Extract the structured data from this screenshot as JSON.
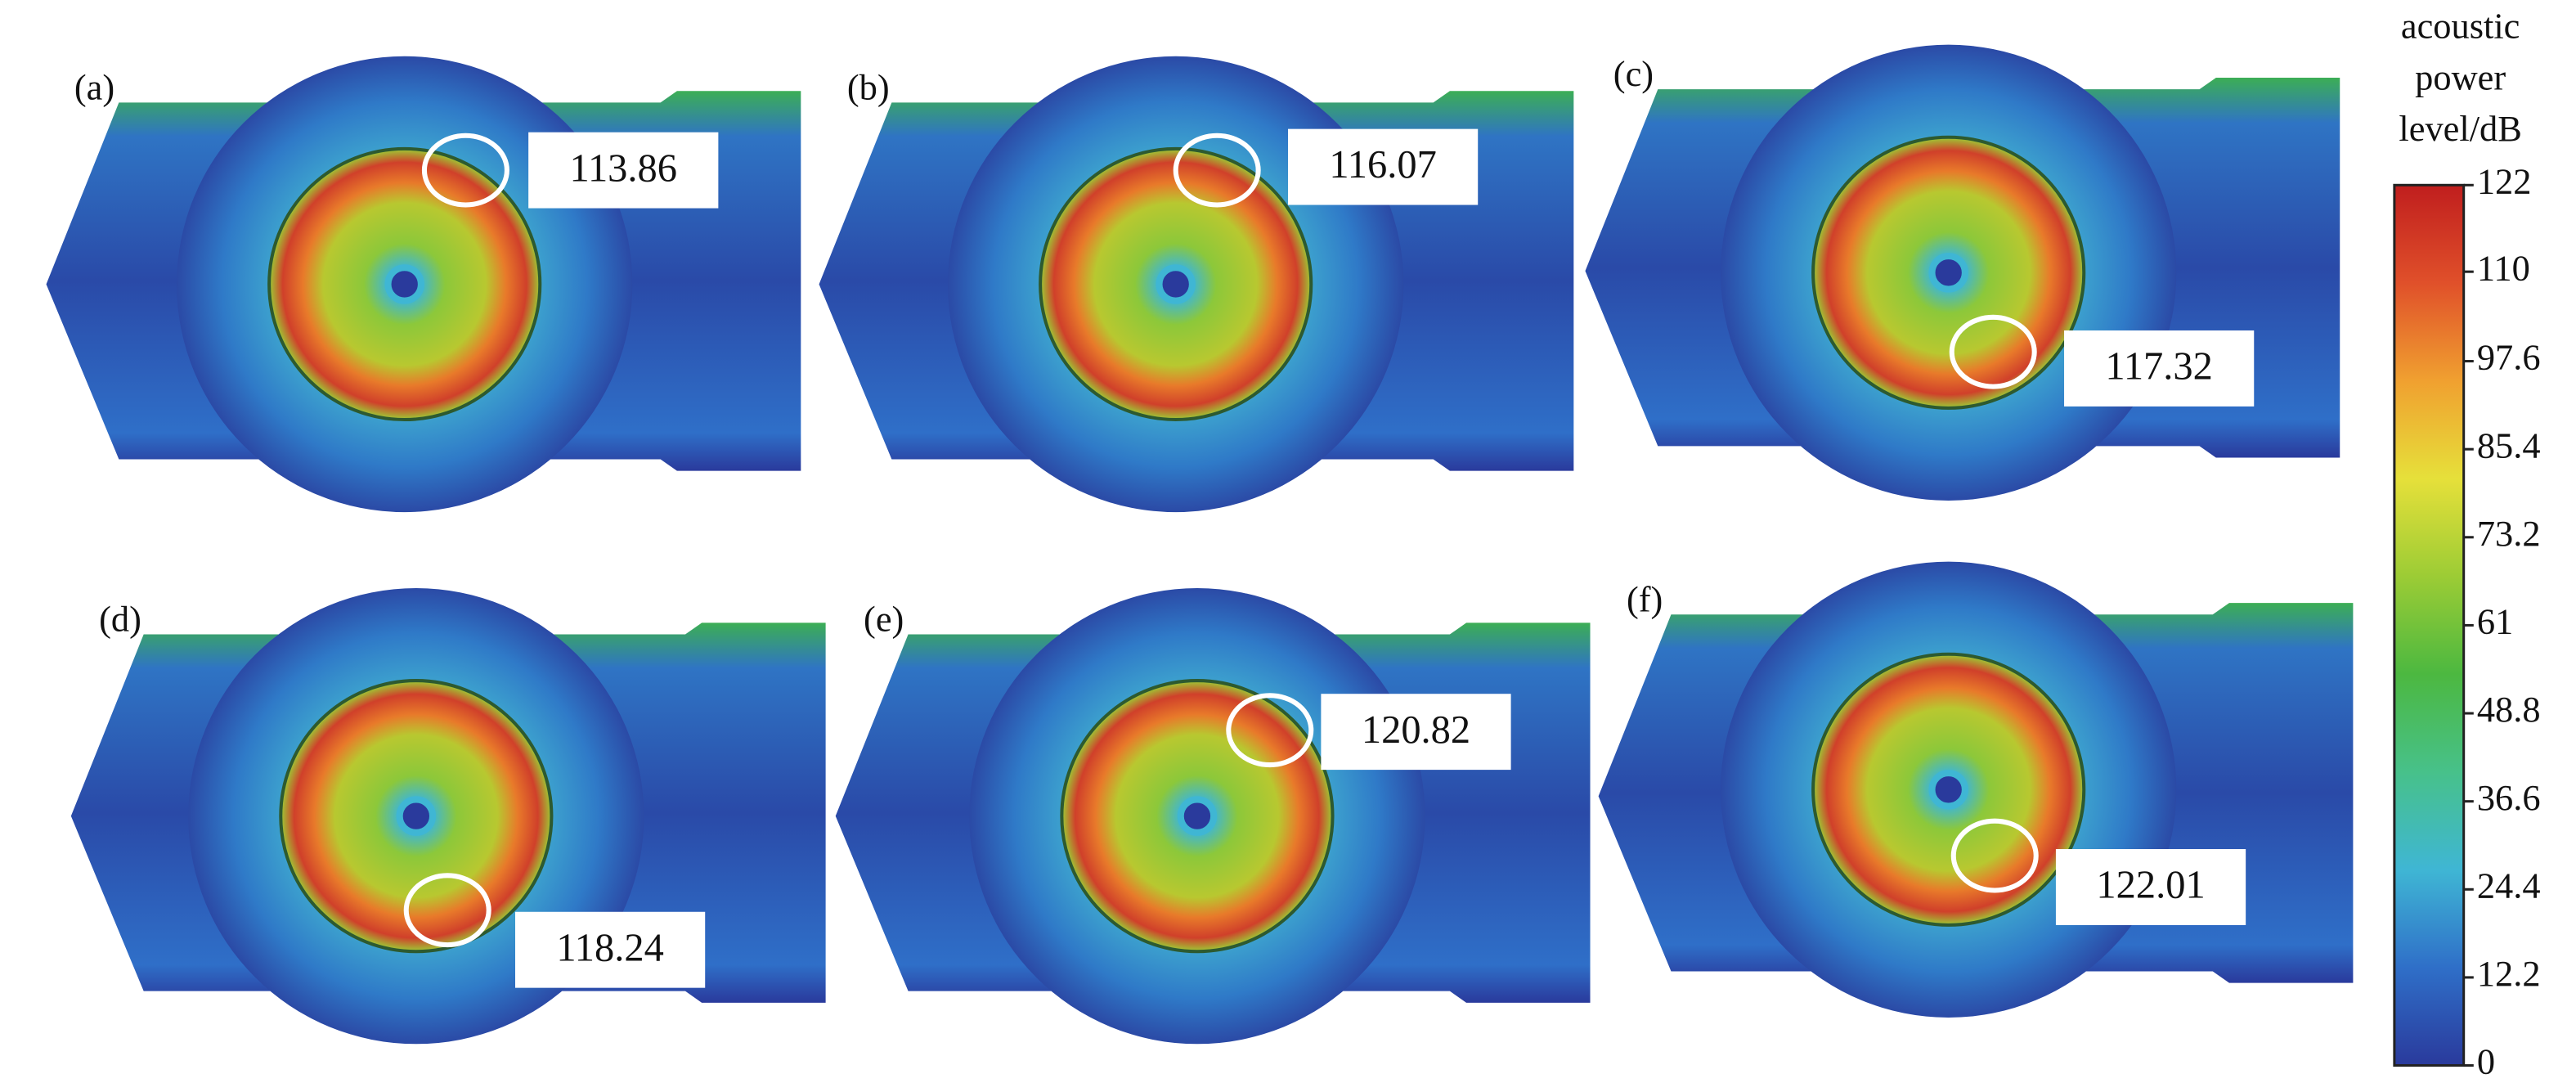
{
  "panels": [
    {
      "label": "(a)",
      "value": 113.86
    },
    {
      "label": "(b)",
      "value": 116.07
    },
    {
      "label": "(c)",
      "value": 117.32
    },
    {
      "label": "(d)",
      "value": 118.24
    },
    {
      "label": "(e)",
      "value": 120.82
    },
    {
      "label": "(f)",
      "value": 122.01
    }
  ],
  "colorbar": {
    "title": [
      "acoustic",
      "power",
      "level/dB"
    ],
    "range": [
      0,
      122
    ],
    "ticks": [
      0,
      12.2,
      24.4,
      36.6,
      48.8,
      61,
      73.2,
      85.4,
      97.6,
      110,
      122
    ],
    "colors": [
      "#2a3a9c",
      "#2f6fc8",
      "#3fb6d4",
      "#47c18a",
      "#4cb840",
      "#9ccc35",
      "#e6e03a",
      "#f0a030",
      "#e0502a",
      "#c01e1e"
    ]
  }
}
